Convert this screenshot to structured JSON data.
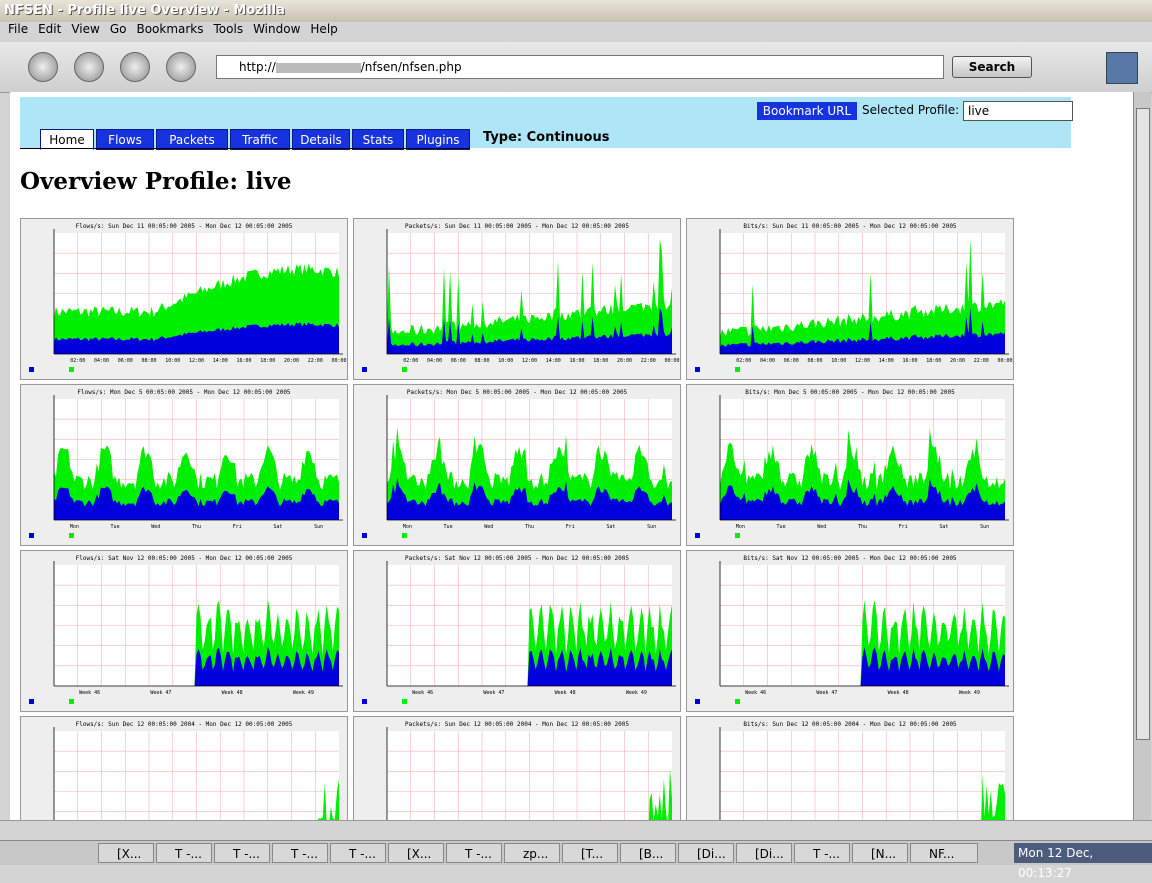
{
  "window": {
    "title": "NFSEN - Profile live Overview - Mozilla"
  },
  "menu": [
    "File",
    "Edit",
    "View",
    "Go",
    "Bookmarks",
    "Tools",
    "Window",
    "Help"
  ],
  "toolbar": {
    "url_prefix": "http://",
    "url_path": "/nfsen/nfsen.php",
    "search": "Search"
  },
  "page": {
    "bookmark": "Bookmark URL",
    "profile_label": "Selected Profile:",
    "profile": "live",
    "tabs": [
      "Home",
      "Flows",
      "Packets",
      "Traffic",
      "Details",
      "Stats",
      "Plugins"
    ],
    "type": "Type: Continuous",
    "heading": "Overview Profile: live",
    "graphs": [
      {
        "title": "Flows/s: Sun Dec 11 00:05:00 2005 - Mon Dec 12 00:05:00 2005",
        "xlabels": [
          "02:00",
          "04:00",
          "06:00",
          "08:00",
          "10:00",
          "12:00",
          "14:00",
          "16:00",
          "18:00",
          "20:00",
          "22:00",
          "00:00"
        ]
      },
      {
        "title": "Packets/s: Sun Dec 11 00:05:00 2005 - Mon Dec 12 00:05:00 2005",
        "xlabels": [
          "02:00",
          "04:00",
          "06:00",
          "08:00",
          "10:00",
          "12:00",
          "14:00",
          "16:00",
          "18:00",
          "20:00",
          "22:00",
          "00:00"
        ]
      },
      {
        "title": "Bits/s: Sun Dec 11 00:05:00 2005 - Mon Dec 12 00:05:00 2005",
        "xlabels": [
          "02:00",
          "04:00",
          "06:00",
          "08:00",
          "10:00",
          "12:00",
          "14:00",
          "16:00",
          "18:00",
          "20:00",
          "22:00",
          "00:00"
        ]
      },
      {
        "title": "Flows/s: Mon Dec  5 00:05:00 2005 - Mon Dec 12 00:05:00 2005",
        "xlabels": [
          "Mon",
          "Tue",
          "Wed",
          "Thu",
          "Fri",
          "Sat",
          "Sun"
        ]
      },
      {
        "title": "Packets/s: Mon Dec  5 00:05:00 2005 - Mon Dec 12 00:05:00 2005",
        "xlabels": [
          "Mon",
          "Tue",
          "Wed",
          "Thu",
          "Fri",
          "Sat",
          "Sun"
        ]
      },
      {
        "title": "Bits/s: Mon Dec  5 00:05:00 2005 - Mon Dec 12 00:05:00 2005",
        "xlabels": [
          "Mon",
          "Tue",
          "Wed",
          "Thu",
          "Fri",
          "Sat",
          "Sun"
        ]
      },
      {
        "title": "Flows/s: Sat Nov 12 00:05:00 2005 - Mon Dec 12 00:05:00 2005",
        "xlabels": [
          "Week 46",
          "Week 47",
          "Week 48",
          "Week 49"
        ]
      },
      {
        "title": "Packets/s: Sat Nov 12 00:05:00 2005 - Mon Dec 12 00:05:00 2005",
        "xlabels": [
          "Week 46",
          "Week 47",
          "Week 48",
          "Week 49"
        ]
      },
      {
        "title": "Bits/s: Sat Nov 12 00:05:00 2005 - Mon Dec 12 00:05:00 2005",
        "xlabels": [
          "Week 46",
          "Week 47",
          "Week 48",
          "Week 49"
        ]
      },
      {
        "title": "Flows/s: Sun Dec 12 00:05:00 2004 - Mon Dec 12 00:05:00 2005"
      },
      {
        "title": "Packets/s: Sun Dec 12 00:05:00 2004 - Mon Dec 12 00:05:00 2005"
      },
      {
        "title": "Bits/s: Sun Dec 12 00:05:00 2004 - Mon Dec 12 00:05:00 2005"
      }
    ]
  },
  "taskbar": {
    "items": [
      "[X...",
      "T -...",
      "T -...",
      "T -...",
      "T -...",
      "[X...",
      "T -...",
      "zp...",
      "[T...",
      "[B...",
      "[Di...",
      "[Di...",
      "T -...",
      "[N...",
      "NF..."
    ],
    "clock": "Mon 12 Dec, 00:13:27"
  }
}
